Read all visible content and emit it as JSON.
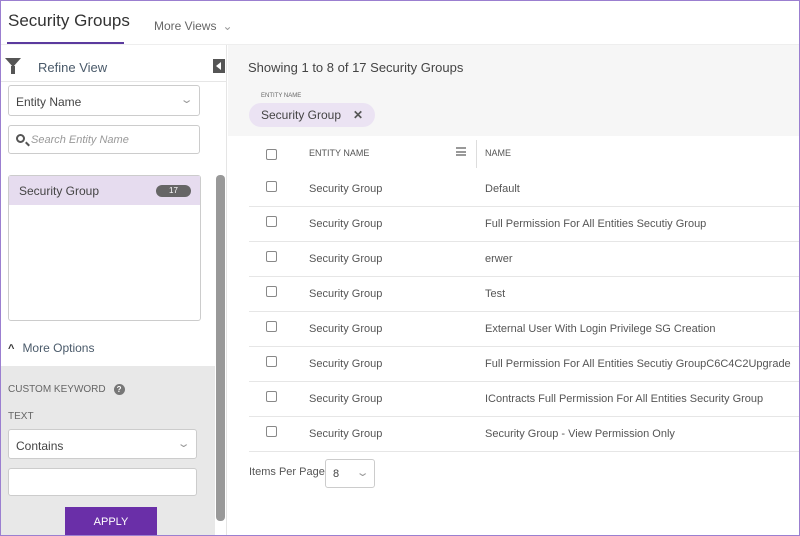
{
  "header": {
    "title": "Security Groups",
    "more_views": "More Views"
  },
  "sidebar": {
    "refine_view": "Refine View",
    "filter_field": "Entity Name",
    "search_placeholder": "Search Entity Name",
    "items": [
      {
        "label": "Security Group",
        "count": "17"
      }
    ],
    "more_options": "More Options",
    "custom_keyword": "CUSTOM KEYWORD",
    "text_label": "TEXT",
    "text_operator": "Contains",
    "text_value": "",
    "apply": "APPLY"
  },
  "main": {
    "showing": "Showing 1 to 8 of 17 Security Groups",
    "chip_label": "ENTITY NAME",
    "chip_value": "Security Group",
    "columns": [
      "ENTITY NAME",
      "NAME"
    ],
    "rows": [
      [
        "Security Group",
        "Default"
      ],
      [
        "Security Group",
        "Full Permission For All Entities Secutiy Group"
      ],
      [
        "Security Group",
        "erwer"
      ],
      [
        "Security Group",
        "Test"
      ],
      [
        "Security Group",
        "External User With Login Privilege SG Creation"
      ],
      [
        "Security Group",
        "Full Permission For All Entities Secutiy GroupC6C4C2Upgrade"
      ],
      [
        "Security Group",
        "IContracts Full Permission For All Entities Security Group"
      ],
      [
        "Security Group",
        "Security Group - View Permission Only"
      ]
    ],
    "items_per_page_label": "Items Per Page",
    "items_per_page": "8"
  },
  "colors": {
    "accent": "#6a2fa8",
    "selected_bg": "#e6dcef",
    "border": "#9b7fd0"
  }
}
